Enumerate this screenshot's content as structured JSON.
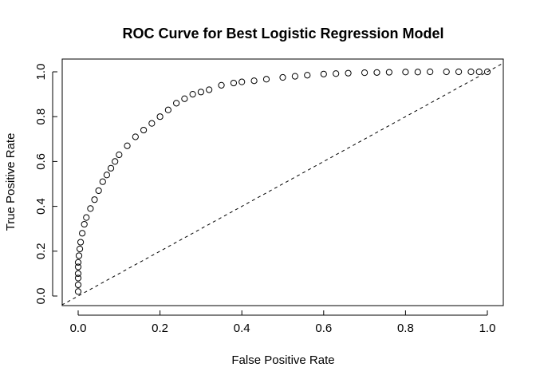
{
  "chart_data": {
    "type": "scatter",
    "title": "ROC Curve for Best Logistic Regression Model",
    "xlabel": "False Positive Rate",
    "ylabel": "True Positive Rate",
    "xlim": [
      0,
      1
    ],
    "ylim": [
      0,
      1
    ],
    "xticks": [
      "0.0",
      "0.2",
      "0.4",
      "0.6",
      "0.8",
      "1.0"
    ],
    "yticks": [
      "0.0",
      "0.2",
      "0.4",
      "0.6",
      "0.8",
      "1.0"
    ],
    "grid": false,
    "reference_line": {
      "style": "dashed",
      "from": [
        0,
        0
      ],
      "to": [
        1,
        1
      ]
    },
    "marker": "open-circle",
    "series": [
      {
        "x": [
          0.0,
          0.0,
          0.0,
          0.0,
          0.0,
          0.0,
          0.002,
          0.004,
          0.006,
          0.01,
          0.015,
          0.02,
          0.03,
          0.04,
          0.05,
          0.06,
          0.07,
          0.08,
          0.09,
          0.1,
          0.12,
          0.14,
          0.16,
          0.18,
          0.2,
          0.22,
          0.24,
          0.26,
          0.28,
          0.3,
          0.32,
          0.35,
          0.38,
          0.4,
          0.43,
          0.46,
          0.5,
          0.53,
          0.56,
          0.6,
          0.63,
          0.66,
          0.7,
          0.73,
          0.76,
          0.8,
          0.83,
          0.86,
          0.9,
          0.93,
          0.96,
          0.98,
          1.0
        ],
        "y": [
          0.02,
          0.05,
          0.08,
          0.1,
          0.13,
          0.15,
          0.18,
          0.21,
          0.24,
          0.28,
          0.32,
          0.35,
          0.39,
          0.43,
          0.47,
          0.51,
          0.54,
          0.57,
          0.6,
          0.63,
          0.67,
          0.71,
          0.74,
          0.77,
          0.8,
          0.83,
          0.86,
          0.88,
          0.9,
          0.91,
          0.92,
          0.94,
          0.95,
          0.955,
          0.96,
          0.967,
          0.975,
          0.98,
          0.985,
          0.99,
          0.992,
          0.994,
          0.996,
          0.997,
          0.998,
          0.999,
          0.999,
          1.0,
          1.0,
          1.0,
          1.0,
          1.0,
          1.0
        ]
      }
    ]
  }
}
